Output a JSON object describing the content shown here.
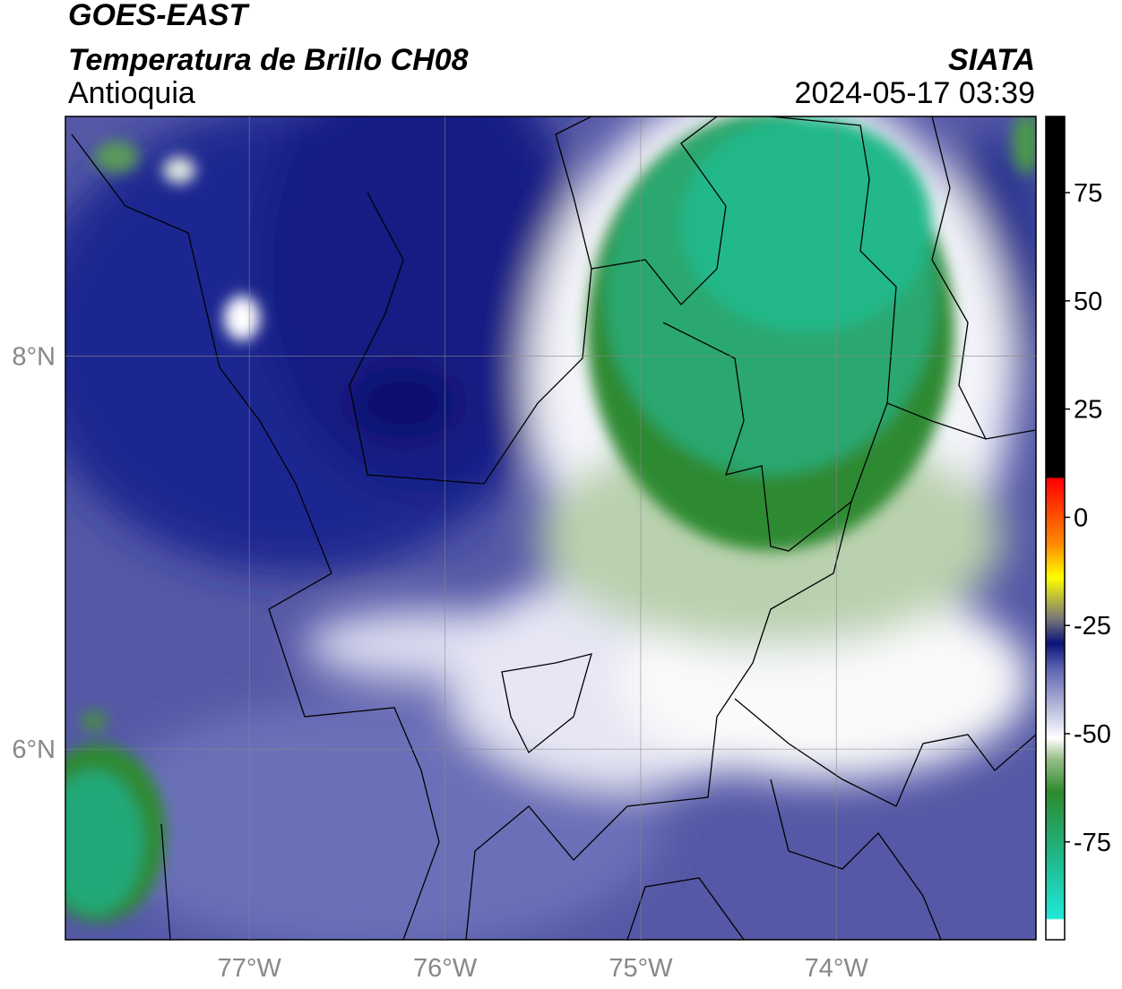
{
  "header": {
    "title": "GOES-EAST",
    "subtitle": "Temperatura de Brillo CH08",
    "region": "Antioquia",
    "source": "SIATA",
    "timestamp": "2024-05-17 03:39"
  },
  "map": {
    "xlim": [
      -77.94,
      -72.98
    ],
    "ylim": [
      5.03,
      9.22
    ],
    "xticks": [
      {
        "value": -77,
        "label": "77°W"
      },
      {
        "value": -76,
        "label": "76°W"
      },
      {
        "value": -75,
        "label": "75°W"
      },
      {
        "value": -74,
        "label": "74°W"
      }
    ],
    "yticks": [
      {
        "value": 8,
        "label": "8°N"
      },
      {
        "value": 6,
        "label": "6°N"
      }
    ],
    "grid": true
  },
  "colorbar": {
    "lim": [
      -97.6,
      92.6
    ],
    "ticks": [
      75,
      50,
      25,
      0,
      -25,
      -50,
      -75
    ]
  }
}
